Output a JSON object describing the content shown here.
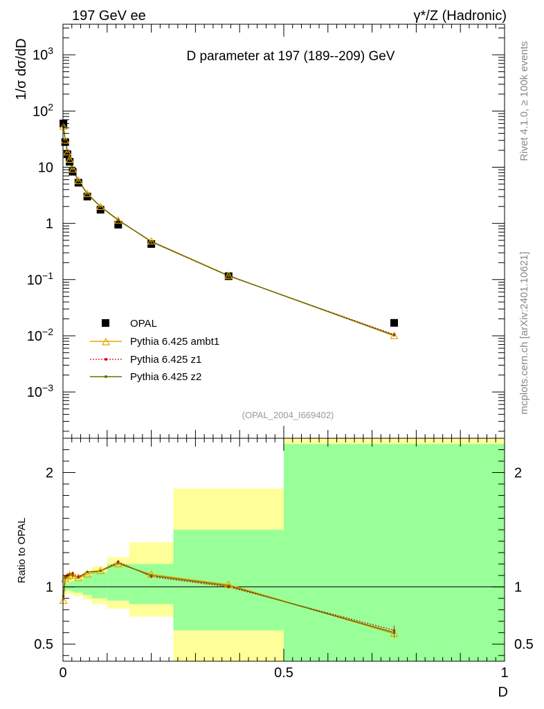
{
  "header": {
    "left": "197 GeV ee",
    "right": "γ*/Z (Hadronic)"
  },
  "side": {
    "rivet": "Rivet 4.1.0, ≥ 100k events",
    "mcplots": "mcplots.cern.ch [arXiv:2401.10621]"
  },
  "colors": {
    "data": "#000000",
    "ambt1": "#e6a800",
    "z1": "#dd0000",
    "z2": "#6b6b00",
    "band_inner": "#99ff99",
    "band_outer": "#ffff99"
  },
  "chart_data": [
    {
      "type": "line",
      "title": "D parameter at 197 (189--209) GeV",
      "analysis_id": "(OPAL_2004_I669402)",
      "xlabel": "D",
      "ylabel": "1/σ  dσ/dD",
      "yscale": "log",
      "xlim": [
        0,
        1
      ],
      "ylim": [
        0.00015,
        3500
      ],
      "y_ticks": [
        {
          "v": 0.001,
          "base": "10",
          "exp": "−3"
        },
        {
          "v": 0.01,
          "base": "10",
          "exp": "−2"
        },
        {
          "v": 0.1,
          "base": "10",
          "exp": "−1"
        },
        {
          "v": 1,
          "base": "1",
          "exp": ""
        },
        {
          "v": 10,
          "base": "10",
          "exp": ""
        },
        {
          "v": 100,
          "base": "10",
          "exp": "2"
        },
        {
          "v": 1000,
          "base": "10",
          "exp": "3"
        }
      ],
      "legend": {
        "placement": "bottom-left",
        "entries": [
          "OPAL",
          "Pythia 6.425 ambt1",
          "Pythia 6.425 z1",
          "Pythia 6.425 z2"
        ]
      },
      "data": {
        "name": "OPAL",
        "x": [
          0.001,
          0.005,
          0.01,
          0.015,
          0.022,
          0.035,
          0.055,
          0.085,
          0.125,
          0.2,
          0.375,
          0.75
        ],
        "y": [
          60,
          28,
          17,
          12.5,
          8.3,
          5.3,
          3.0,
          1.75,
          0.95,
          0.43,
          0.115,
          0.017
        ]
      },
      "series": [
        {
          "name": "Pythia 6.425 ambt1",
          "x": [
            0.001,
            0.005,
            0.01,
            0.015,
            0.022,
            0.035,
            0.055,
            0.085,
            0.125,
            0.2,
            0.375,
            0.75
          ],
          "y": [
            53,
            30,
            18.5,
            13.7,
            9.1,
            5.7,
            3.35,
            1.98,
            1.13,
            0.48,
            0.118,
            0.01
          ]
        },
        {
          "name": "Pythia 6.425 z1",
          "x": [
            0.001,
            0.005,
            0.01,
            0.015,
            0.022,
            0.035,
            0.055,
            0.085,
            0.125,
            0.2,
            0.375,
            0.75
          ],
          "y": [
            55,
            30.5,
            18.7,
            13.9,
            9.2,
            5.8,
            3.4,
            1.99,
            1.16,
            0.47,
            0.116,
            0.0105
          ]
        },
        {
          "name": "Pythia 6.425 z2",
          "x": [
            0.001,
            0.005,
            0.01,
            0.015,
            0.022,
            0.035,
            0.055,
            0.085,
            0.125,
            0.2,
            0.375,
            0.75
          ],
          "y": [
            55,
            30.3,
            18.6,
            13.8,
            9.2,
            5.75,
            3.38,
            1.99,
            1.15,
            0.475,
            0.117,
            0.0102
          ]
        }
      ]
    },
    {
      "type": "line",
      "ylabel": "Ratio to OPAL",
      "xlabel": "D",
      "xlim": [
        0,
        1
      ],
      "ylim": [
        0.35,
        2.3
      ],
      "x_ticks": [
        {
          "v": 0,
          "label": "0"
        },
        {
          "v": 0.5,
          "label": "0.5"
        },
        {
          "v": 1,
          "label": "1"
        }
      ],
      "y_ticks": [
        {
          "v": 0.5,
          "label": "0.5"
        },
        {
          "v": 1,
          "label": "1"
        },
        {
          "v": 2,
          "label": "2"
        }
      ],
      "bands": {
        "x_edges": [
          0,
          0.002,
          0.008,
          0.012,
          0.018,
          0.025,
          0.045,
          0.065,
          0.1,
          0.15,
          0.25,
          0.5,
          1.0
        ],
        "inner_lo": [
          0.99,
          0.96,
          0.97,
          0.97,
          0.96,
          0.95,
          0.93,
          0.9,
          0.88,
          0.85,
          0.62,
          0.35
        ],
        "inner_hi": [
          1.01,
          1.04,
          1.03,
          1.04,
          1.05,
          1.06,
          1.1,
          1.13,
          1.2,
          1.2,
          1.5,
          2.25
        ],
        "outer_lo": [
          0.98,
          0.93,
          0.94,
          0.94,
          0.93,
          0.92,
          0.89,
          0.85,
          0.81,
          0.74,
          0.35,
          0.35
        ],
        "outer_hi": [
          1.02,
          1.07,
          1.06,
          1.07,
          1.09,
          1.1,
          1.14,
          1.18,
          1.26,
          1.39,
          1.86,
          2.3
        ]
      },
      "series": [
        {
          "name": "Pythia 6.425 ambt1",
          "x": [
            0.001,
            0.005,
            0.01,
            0.015,
            0.022,
            0.035,
            0.055,
            0.085,
            0.125,
            0.2,
            0.375,
            0.75
          ],
          "y": [
            0.88,
            1.07,
            1.09,
            1.1,
            1.1,
            1.08,
            1.11,
            1.14,
            1.2,
            1.11,
            1.02,
            0.59
          ]
        },
        {
          "name": "Pythia 6.425 z1",
          "x": [
            0.001,
            0.005,
            0.01,
            0.015,
            0.022,
            0.035,
            0.055,
            0.085,
            0.125,
            0.2,
            0.375,
            0.75
          ],
          "y": [
            0.92,
            1.09,
            1.1,
            1.11,
            1.12,
            1.09,
            1.13,
            1.14,
            1.22,
            1.09,
            1.0,
            0.62
          ]
        },
        {
          "name": "Pythia 6.425 z2",
          "x": [
            0.001,
            0.005,
            0.01,
            0.015,
            0.022,
            0.035,
            0.055,
            0.085,
            0.125,
            0.2,
            0.375,
            0.75
          ],
          "y": [
            0.92,
            1.08,
            1.09,
            1.11,
            1.1,
            1.08,
            1.13,
            1.14,
            1.21,
            1.1,
            1.01,
            0.6
          ]
        }
      ]
    }
  ]
}
